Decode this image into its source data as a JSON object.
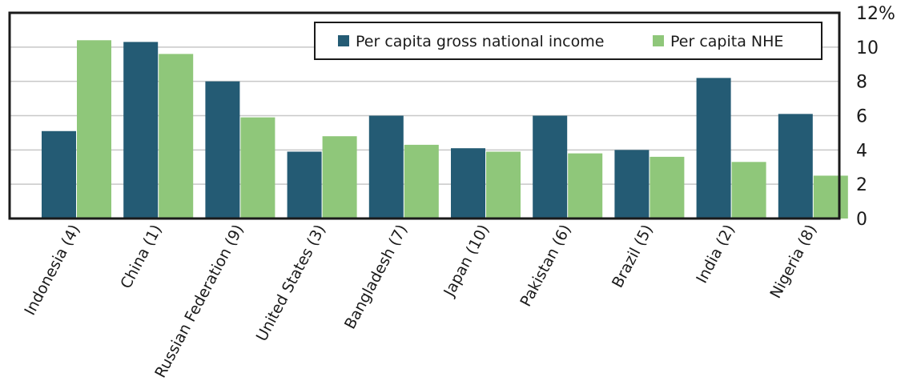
{
  "chart_data": {
    "type": "bar",
    "title": "",
    "xlabel": "",
    "ylabel": "",
    "ylim": [
      0,
      12
    ],
    "yticks": [
      0,
      2,
      4,
      6,
      8,
      10,
      12
    ],
    "ytick_labels": [
      "0",
      "2",
      "4",
      "6",
      "8",
      "10",
      "12%"
    ],
    "y_axis_side": "right",
    "grid": true,
    "legend_placement": "top-right",
    "categories": [
      "Indonesia (4)",
      "China (1)",
      "Russian Federation (9)",
      "United States (3)",
      "Bangladesh (7)",
      "Japan (10)",
      "Pakistan (6)",
      "Brazil (5)",
      "India (2)",
      "Nigeria (8)"
    ],
    "series": [
      {
        "name": "Per capita gross national income",
        "color": "#245b74",
        "values": [
          5.1,
          10.3,
          8.0,
          3.9,
          6.0,
          4.1,
          6.0,
          4.0,
          8.2,
          6.1
        ]
      },
      {
        "name": "Per capita NHE",
        "color": "#8fc77a",
        "values": [
          10.4,
          9.6,
          5.9,
          4.8,
          4.3,
          3.9,
          3.8,
          3.6,
          3.3,
          2.5
        ]
      }
    ]
  },
  "colors": {
    "grid": "#c8c8c8",
    "frame": "#1a1a1a",
    "text": "#1a1a1a"
  }
}
